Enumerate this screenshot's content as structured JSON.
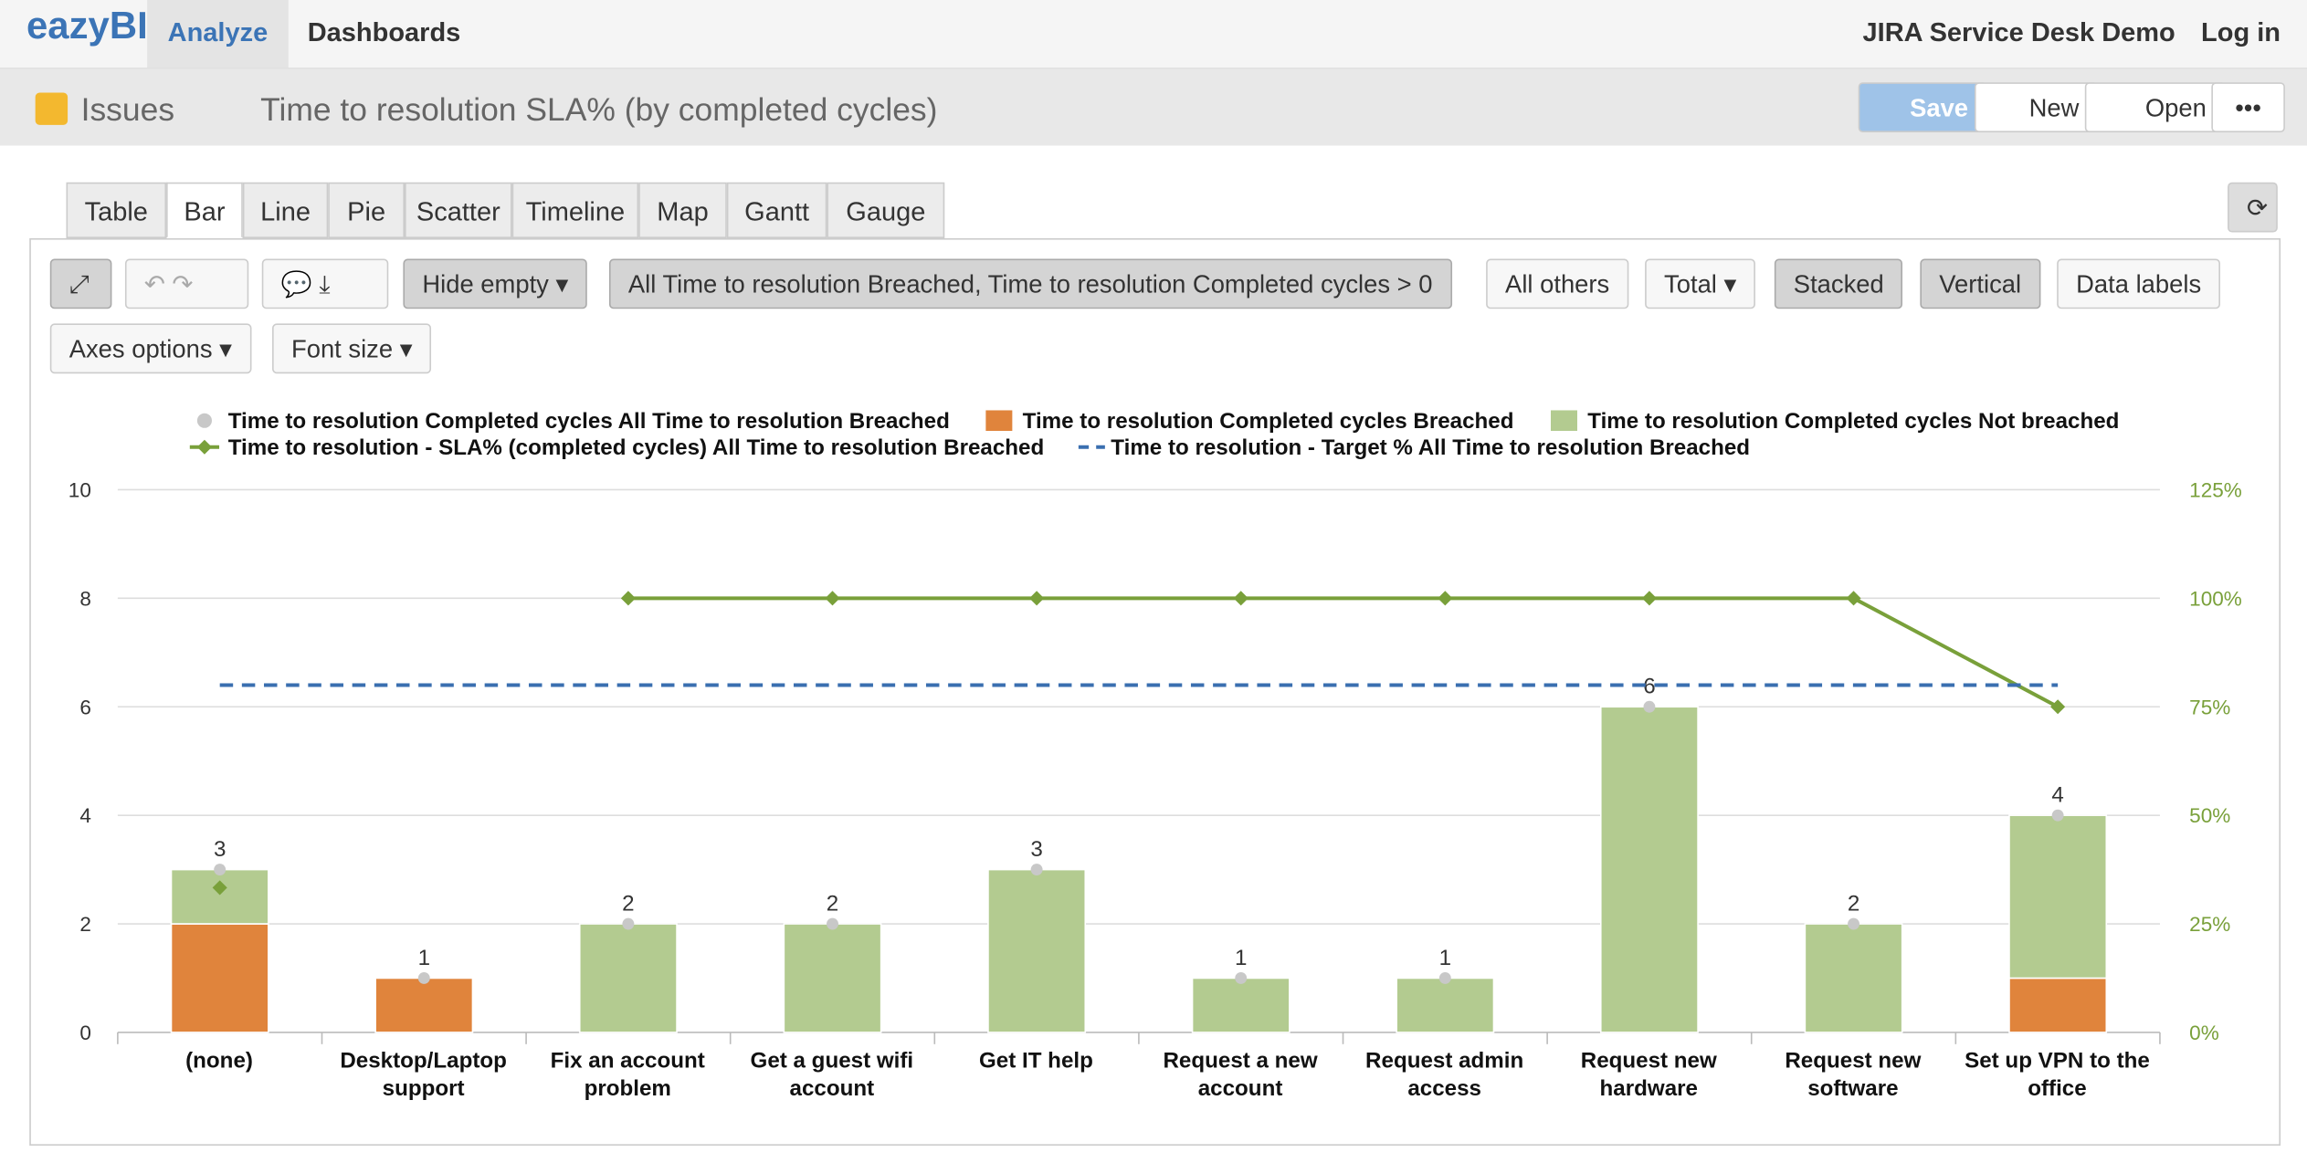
{
  "nav": {
    "logo": "eazyBI",
    "tabs": [
      "Analyze",
      "Dashboards"
    ],
    "account": "JIRA Service Desk Demo",
    "login": "Log in"
  },
  "breadcrumb": {
    "cube": "Issues",
    "report": "Time to resolution SLA% (by completed cycles)",
    "buttons": [
      "Save",
      "New",
      "Open"
    ]
  },
  "view_tabs": [
    "Table",
    "Bar",
    "Line",
    "Pie",
    "Scatter",
    "Timeline",
    "Map",
    "Gantt",
    "Gauge"
  ],
  "toolbar": {
    "hide_empty": "Hide empty",
    "filter": "All Time to resolution Breached, Time to resolution Completed cycles > 0",
    "others": "All others",
    "total": "Total",
    "stacked": "Stacked",
    "vertical": "Vertical",
    "labels": "Data labels",
    "axes": "Axes options",
    "font": "Font size"
  },
  "chart_data": {
    "type": "bar",
    "stacked": true,
    "categories": [
      "(none)",
      "Desktop/Laptop support",
      "Fix an account problem",
      "Get a guest wifi account",
      "Get IT help",
      "Request a new account",
      "Request admin access",
      "Request new hardware",
      "Request new software",
      "Set up VPN to the office"
    ],
    "series": [
      {
        "name": "Time to resolution Completed cycles All Time to resolution Breached",
        "color": "#c8c8c8",
        "kind": "dot",
        "values": [
          3,
          1,
          2,
          2,
          3,
          1,
          1,
          6,
          2,
          4
        ]
      },
      {
        "name": "Time to resolution Completed cycles Breached",
        "color": "#e0843c",
        "kind": "bar",
        "values": [
          2,
          1,
          0,
          0,
          0,
          0,
          0,
          0,
          0,
          1
        ]
      },
      {
        "name": "Time to resolution Completed cycles Not breached",
        "color": "#b3cb90",
        "kind": "bar",
        "values": [
          1,
          0,
          2,
          2,
          3,
          1,
          1,
          6,
          2,
          3
        ]
      },
      {
        "name": "Time to resolution - SLA% (completed cycles) All Time to resolution Breached",
        "color": "#79a03a",
        "kind": "line",
        "axis": "y2",
        "values": [
          33.33,
          null,
          100,
          100,
          100,
          100,
          100,
          100,
          100,
          75
        ]
      },
      {
        "name": "Time to resolution - Target % All Time to resolution Breached",
        "color": "#3a6fb0",
        "kind": "dash",
        "axis": "y2",
        "values": [
          80,
          80,
          80,
          80,
          80,
          80,
          80,
          80,
          80,
          80
        ]
      }
    ],
    "ylim": [
      0,
      10
    ],
    "yticks": [
      0,
      2,
      4,
      6,
      8,
      10
    ],
    "y2lim": [
      0,
      125
    ],
    "y2ticks": [
      {
        "value": 0,
        "label": "0%"
      },
      {
        "value": 25,
        "label": "25%"
      },
      {
        "value": 50,
        "label": "50%"
      },
      {
        "value": 75,
        "label": "75%"
      },
      {
        "value": 100,
        "label": "100%"
      },
      {
        "value": 125,
        "label": "125%"
      }
    ],
    "grid": true
  }
}
